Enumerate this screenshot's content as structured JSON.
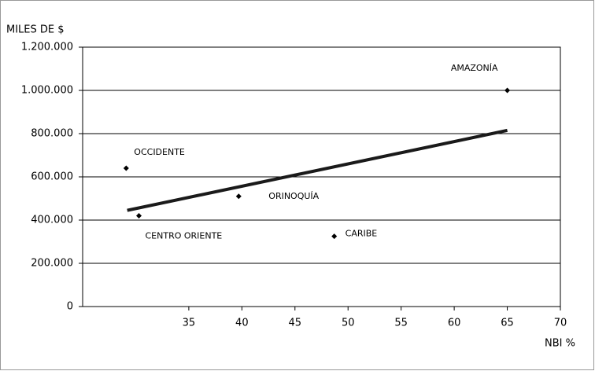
{
  "chart_data": {
    "type": "scatter",
    "y_axis_label": "MILES DE $",
    "x_axis_label": "NBI %",
    "categories": [
      "OCCIDENTE",
      "CENTRO ORIENTE",
      "ORINOQUÍA",
      "CARIBE",
      "AMAZONÍA"
    ],
    "x": [
      29.1,
      30.3,
      39.7,
      48.7,
      65
    ],
    "values": [
      640000,
      420000,
      510000,
      325000,
      1000000
    ],
    "color": "#000000",
    "trendline": {
      "x": [
        29.2,
        65
      ],
      "y": [
        445000,
        815000
      ],
      "color": "#1a1a1a"
    },
    "xlim": [
      25,
      70
    ],
    "xticks": [
      35,
      40,
      45,
      50,
      55,
      60,
      65,
      70
    ],
    "ylim": [
      0,
      1200000
    ],
    "yticks": [
      0,
      {
        "value": 200000,
        "label": "200.000"
      },
      {
        "value": 400000,
        "label": "400.000"
      },
      {
        "value": 600000,
        "label": "600.000"
      },
      {
        "value": 800000,
        "label": "800.000"
      },
      {
        "value": 1000000,
        "label": "1.000.000"
      },
      {
        "value": 1200000,
        "label": "1.200.000"
      }
    ],
    "grid": true
  }
}
